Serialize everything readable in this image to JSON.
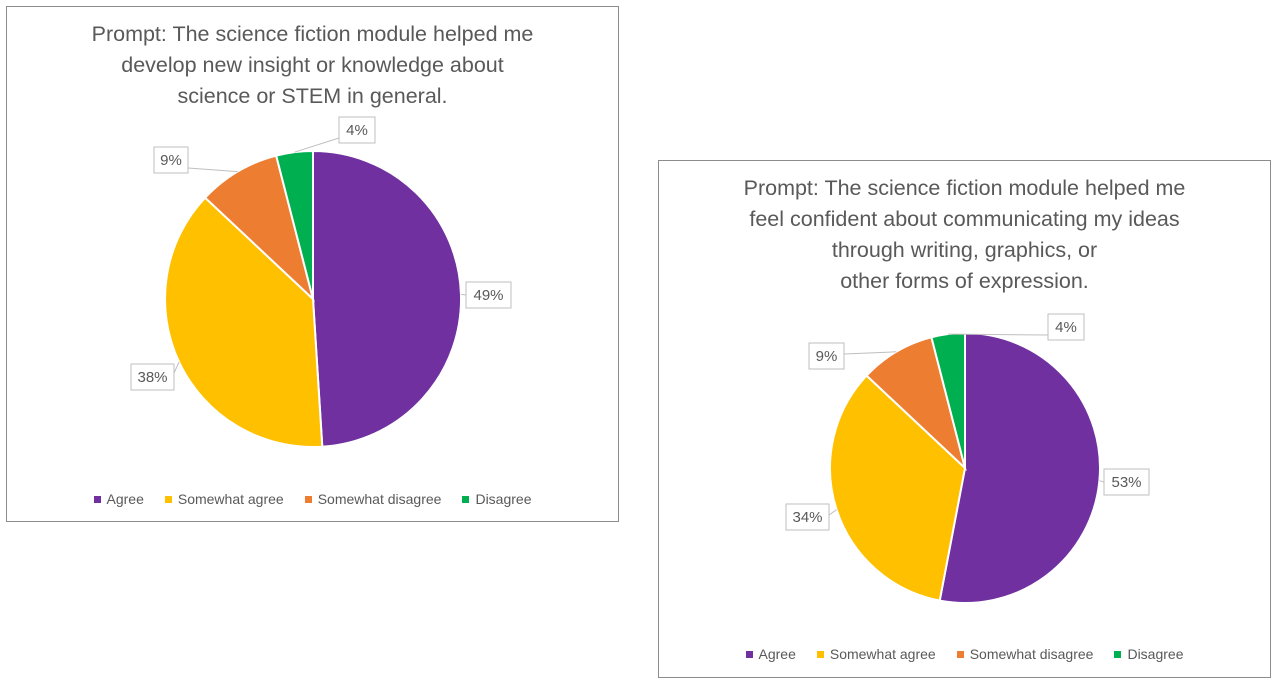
{
  "colors": {
    "agree": "#7030a0",
    "somewhat_agree": "#ffc000",
    "somewhat_disagree": "#ed7d31",
    "disagree": "#00b050"
  },
  "chart_data": [
    {
      "type": "pie",
      "title_lines": [
        "Prompt: The science fiction module helped me",
        "develop new insight or knowledge about",
        "science or STEM in general."
      ],
      "categories": [
        "Agree",
        "Somewhat agree",
        "Somewhat disagree",
        "Disagree"
      ],
      "values": [
        49,
        38,
        9,
        4
      ],
      "data_labels": [
        "49%",
        "38%",
        "9%",
        "4%"
      ],
      "legend_placement": "bottom"
    },
    {
      "type": "pie",
      "title_lines": [
        "Prompt: The science fiction module helped me",
        "feel confident about communicating my ideas",
        "through writing, graphics, or",
        "other forms of expression."
      ],
      "categories": [
        "Agree",
        "Somewhat agree",
        "Somewhat disagree",
        "Disagree"
      ],
      "values": [
        53,
        34,
        9,
        4
      ],
      "data_labels": [
        "53%",
        "34%",
        "9%",
        "4%"
      ],
      "legend_placement": "bottom"
    }
  ]
}
